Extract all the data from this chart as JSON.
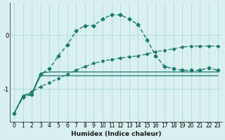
{
  "xlabel": "Humidex (Indice chaleur)",
  "x": [
    0,
    1,
    2,
    3,
    4,
    5,
    6,
    7,
    8,
    9,
    10,
    11,
    12,
    13,
    14,
    15,
    16,
    17,
    18,
    19,
    20,
    21,
    22,
    23
  ],
  "line1": [
    -1.45,
    -1.15,
    -1.1,
    -0.72,
    -0.62,
    -0.38,
    -0.18,
    0.08,
    0.18,
    0.18,
    0.3,
    0.38,
    0.38,
    0.3,
    0.2,
    -0.08,
    -0.38,
    -0.58,
    -0.62,
    -0.65,
    -0.65,
    -0.65,
    -0.6,
    -0.65
  ],
  "line2": [
    -1.45,
    -1.12,
    -1.08,
    -0.7,
    -0.68,
    -0.68,
    -0.68,
    -0.68,
    -0.68,
    -0.68,
    -0.68,
    -0.68,
    -0.68,
    -0.68,
    -0.68,
    -0.68,
    -0.68,
    -0.68,
    -0.68,
    -0.68,
    -0.68,
    -0.68,
    -0.68,
    -0.68
  ],
  "line3": [
    -1.45,
    -1.12,
    -1.08,
    -0.75,
    -0.75,
    -0.75,
    -0.75,
    -0.75,
    -0.75,
    -0.75,
    -0.75,
    -0.75,
    -0.75,
    -0.75,
    -0.75,
    -0.75,
    -0.75,
    -0.75,
    -0.75,
    -0.75,
    -0.75,
    -0.75,
    -0.75,
    -0.75
  ],
  "line4": [
    -1.45,
    -1.12,
    -1.05,
    -0.95,
    -0.88,
    -0.8,
    -0.72,
    -0.65,
    -0.58,
    -0.52,
    -0.48,
    -0.45,
    -0.42,
    -0.4,
    -0.38,
    -0.35,
    -0.3,
    -0.28,
    -0.25,
    -0.22,
    -0.2,
    -0.2,
    -0.2,
    -0.2
  ],
  "bg_color": "#d8f0f0",
  "line_color": "#1a7a6e",
  "grid_color": "#b0d8d8",
  "yticks": [
    -1,
    0
  ],
  "ylim": [
    -1.6,
    0.6
  ],
  "xlim": [
    -0.5,
    23.5
  ]
}
